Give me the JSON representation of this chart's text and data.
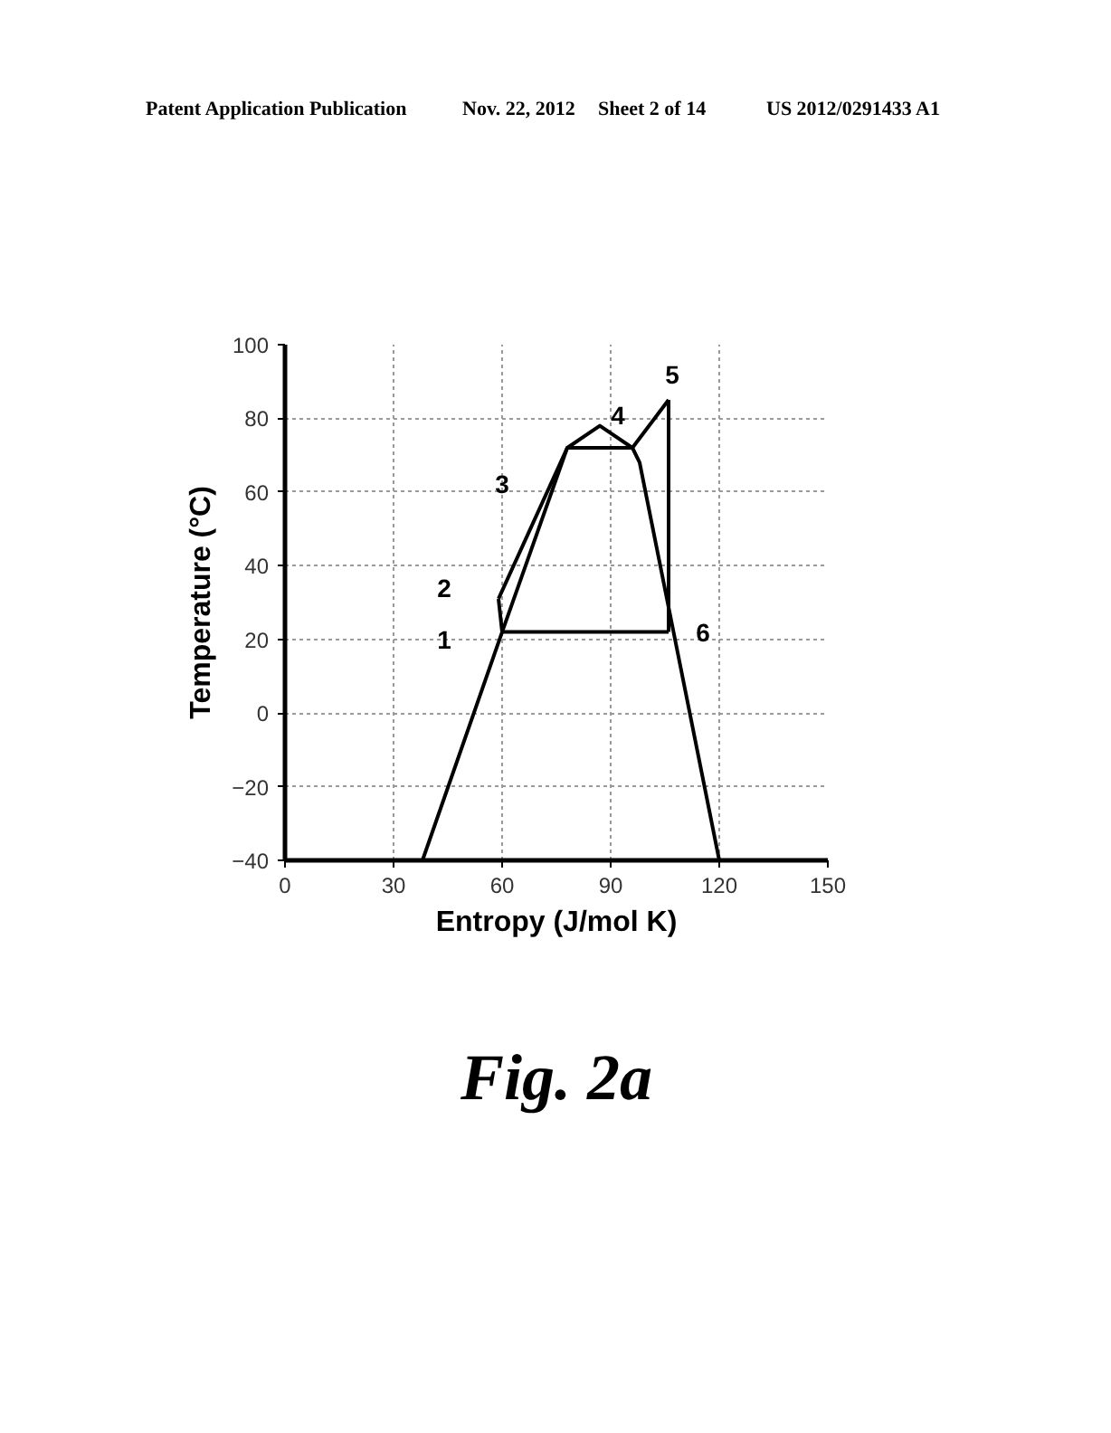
{
  "chart_data": {
    "type": "line",
    "title": "Fig. 2a",
    "xlabel": "Entropy (J/mol K)",
    "ylabel": "Temperature (°C)",
    "xlim": [
      0,
      150
    ],
    "xticks": [
      0,
      30,
      60,
      90,
      120,
      150
    ],
    "ylim": [
      -40,
      100
    ],
    "yticks": [
      -40,
      -20,
      0,
      20,
      40,
      60,
      80,
      100
    ],
    "grid": true,
    "series": [
      {
        "color": "#000000",
        "x": [
          38,
          60,
          78,
          87,
          96,
          98,
          120
        ],
        "values": [
          -40,
          22,
          72,
          78,
          72,
          68,
          -40
        ]
      },
      {
        "color": "#000000",
        "x": [
          59,
          78,
          96,
          106
        ],
        "values": [
          31,
          72,
          72,
          85
        ]
      },
      {
        "color": "#000000",
        "x": [
          106,
          106
        ],
        "values": [
          85,
          22
        ]
      },
      {
        "color": "#000000",
        "x": [
          59,
          60,
          106
        ],
        "values": [
          31,
          22,
          22
        ]
      }
    ],
    "annotations": [
      "Patent Application Publication",
      "Nov. 22, 2012",
      "Sheet 2 of 14",
      "US 2012/0291433 A1",
      {
        "text": "1",
        "x": 60,
        "y": 22
      },
      {
        "text": "2",
        "x": 59,
        "y": 31
      },
      {
        "text": "3",
        "x": 78,
        "y": 72
      },
      {
        "text": "4",
        "x": 96,
        "y": 72
      },
      {
        "text": "5",
        "x": 106,
        "y": 85
      },
      {
        "text": "6",
        "x": 106,
        "y": 22
      }
    ]
  }
}
